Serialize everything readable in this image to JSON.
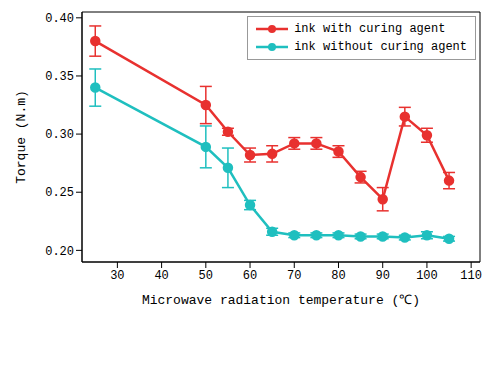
{
  "chart_data": {
    "type": "line",
    "x_label": "Microwave radiation temperature (℃)",
    "y_label": "Torque (N.m)",
    "x": [
      25,
      50,
      55,
      60,
      65,
      70,
      75,
      80,
      85,
      90,
      95,
      100,
      105
    ],
    "series": [
      {
        "name": "ink with curing agent",
        "color": "#e8312f",
        "marker": "circle",
        "values": [
          0.38,
          0.325,
          0.302,
          0.282,
          0.283,
          0.292,
          0.292,
          0.285,
          0.263,
          0.244,
          0.315,
          0.299,
          0.26
        ],
        "errors": [
          0.013,
          0.016,
          0.003,
          0.006,
          0.007,
          0.005,
          0.005,
          0.005,
          0.005,
          0.01,
          0.008,
          0.006,
          0.007
        ]
      },
      {
        "name": "ink without curing agent",
        "color": "#1fbfbf",
        "marker": "circle",
        "values": [
          0.34,
          0.289,
          0.271,
          0.239,
          0.216,
          0.213,
          0.213,
          0.213,
          0.212,
          0.212,
          0.211,
          0.213,
          0.21
        ],
        "errors": [
          0.016,
          0.018,
          0.017,
          0.004,
          0.003,
          0.002,
          0.002,
          0.002,
          0.002,
          0.002,
          0.002,
          0.003,
          0.002
        ]
      }
    ],
    "xlim": [
      22,
      112
    ],
    "xticks": [
      30,
      40,
      50,
      60,
      70,
      80,
      90,
      100,
      110
    ],
    "ylim": [
      0.19,
      0.405
    ],
    "yticks": [
      {
        "value": 0.2,
        "label": "0.20"
      },
      0.25,
      {
        "value": 0.3,
        "label": "0.30"
      },
      0.35,
      {
        "value": 0.4,
        "label": "0.40"
      }
    ],
    "legend": "upper right",
    "grid": false
  }
}
